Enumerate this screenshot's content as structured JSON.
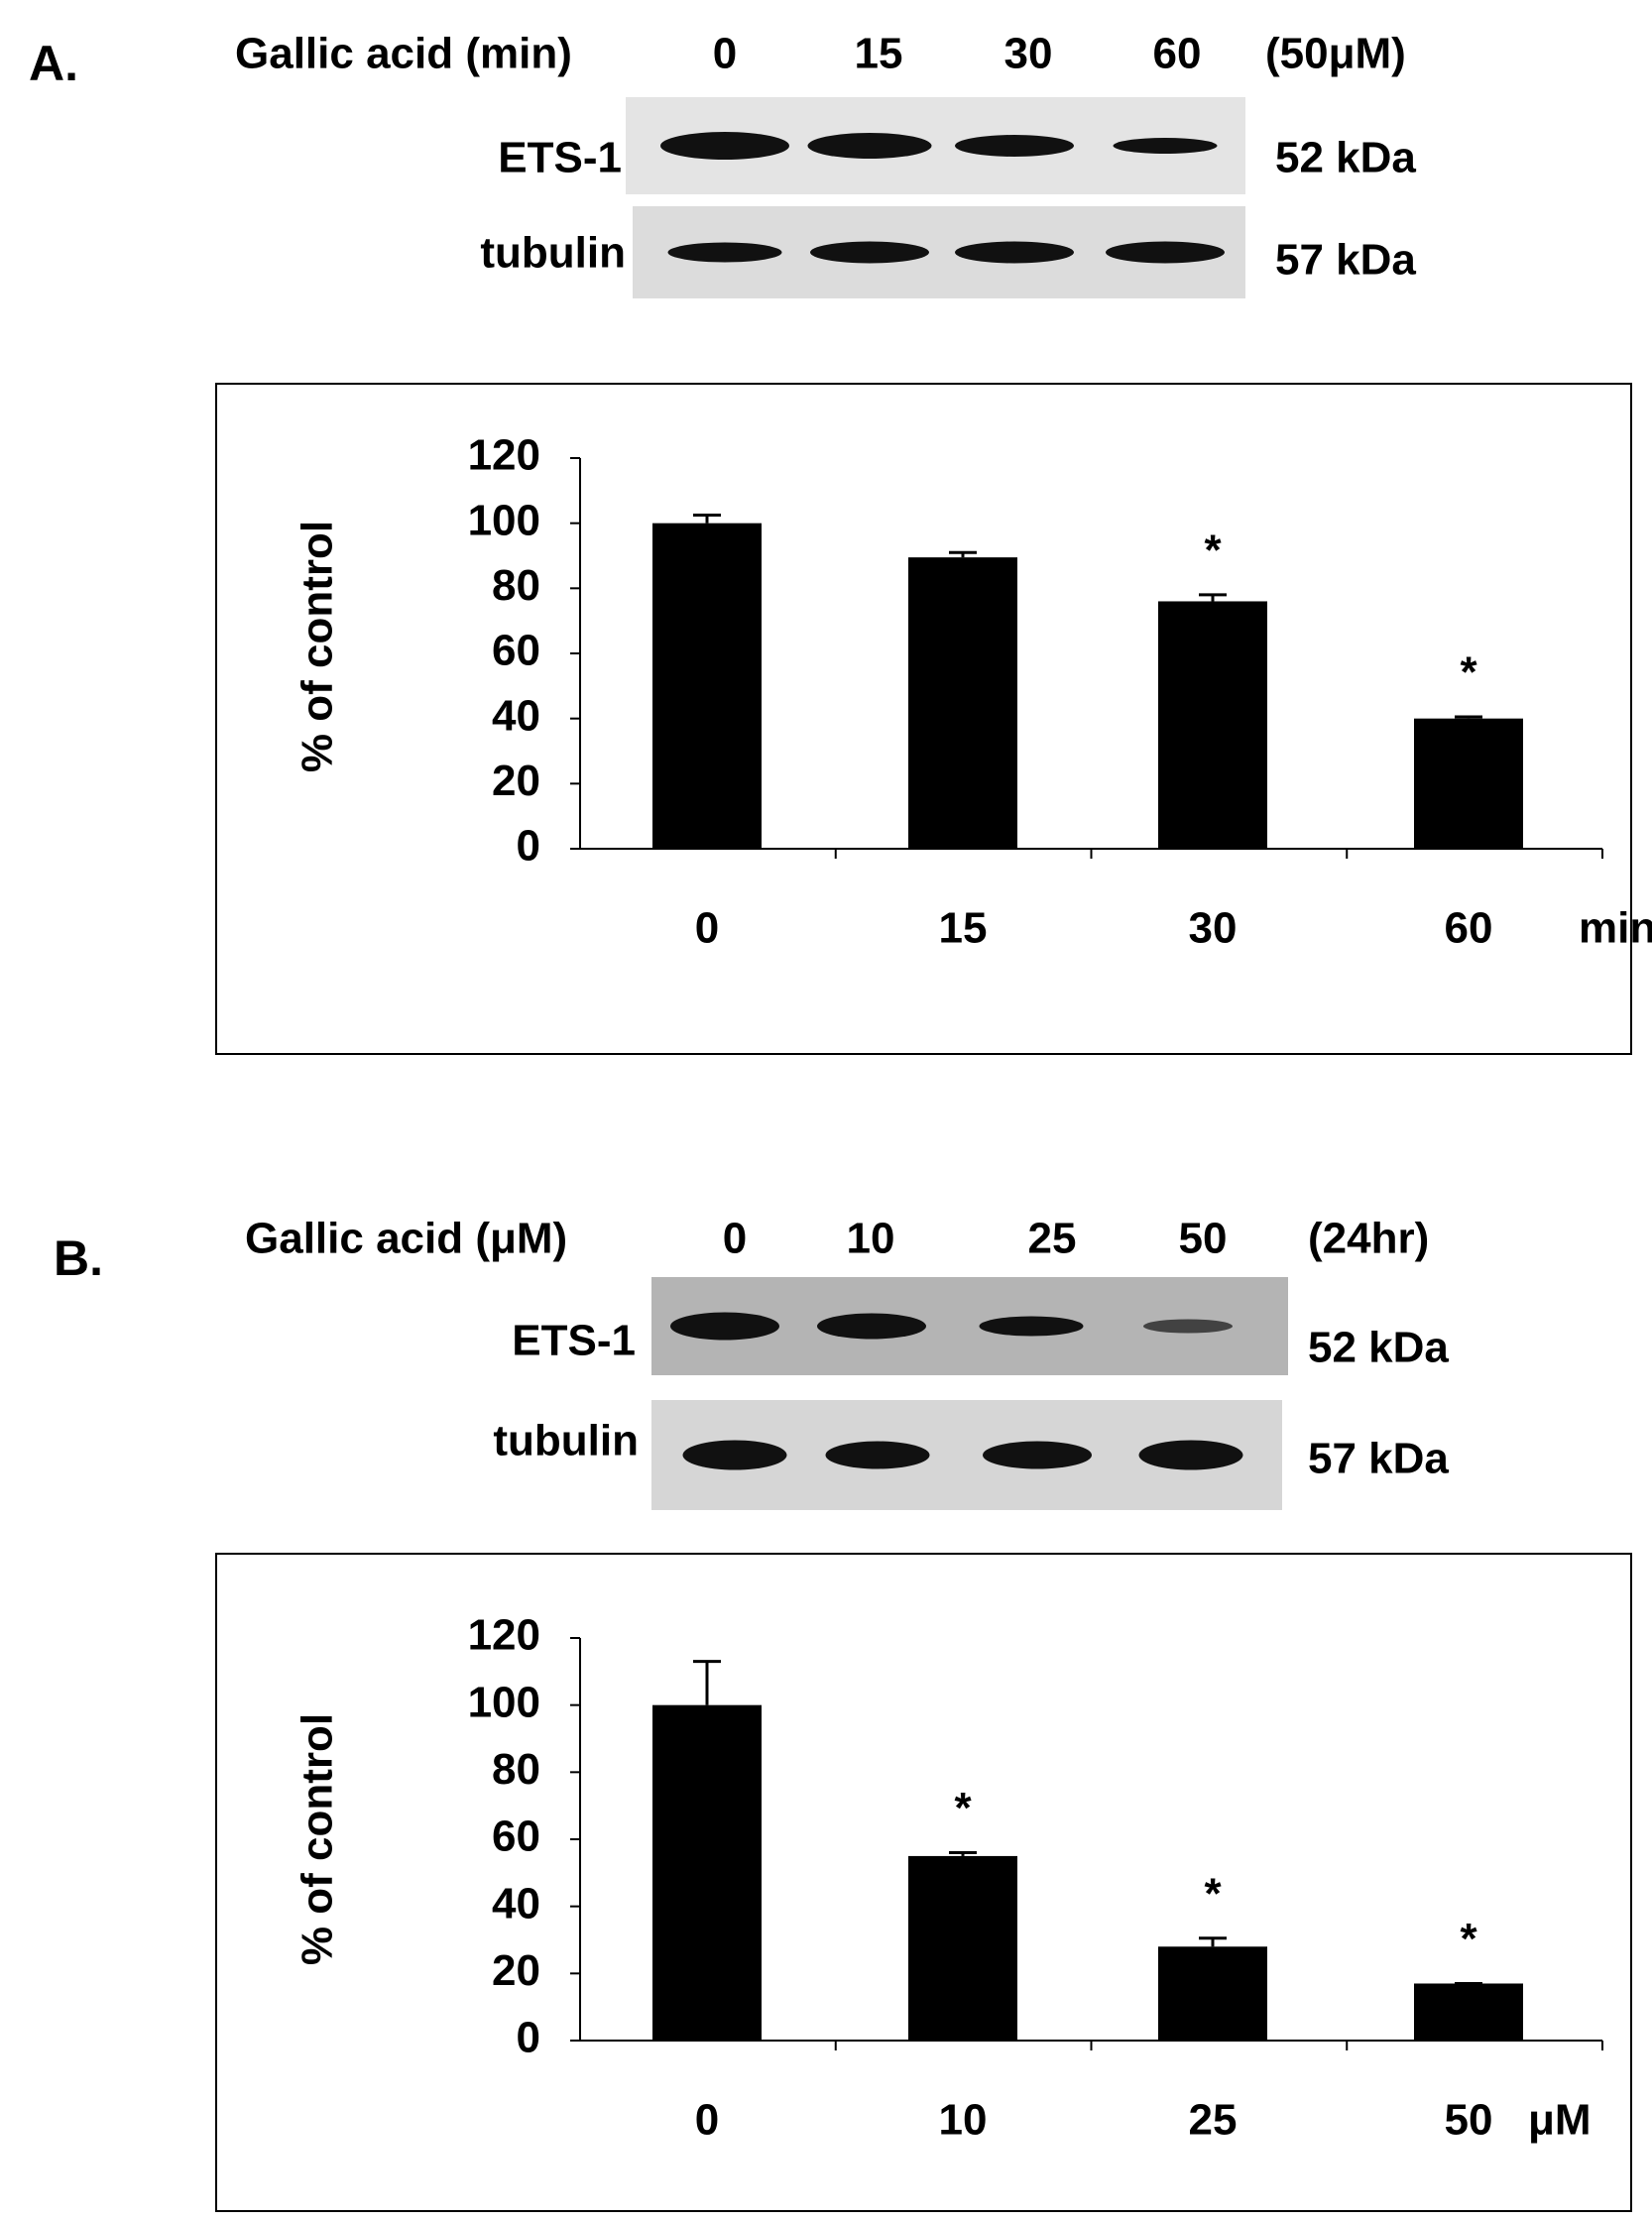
{
  "chart_data": [
    {
      "type": "bar",
      "panel_label": "A.",
      "blot": {
        "treatment_label": "Gallic acid (min)",
        "lanes": [
          "0",
          "15",
          "30",
          "60"
        ],
        "condition": "(50μM)",
        "rows": [
          {
            "protein": "ETS-1",
            "size": "52 kDa"
          },
          {
            "protein": "tubulin",
            "size": "57 kDa"
          }
        ]
      },
      "y_label": "% of control",
      "x_unit": "min",
      "categories": [
        "0",
        "15",
        "30",
        "60"
      ],
      "values": [
        100,
        89.5,
        76,
        40
      ],
      "errors": [
        2.5,
        1.5,
        2,
        0.5
      ],
      "significance": [
        null,
        null,
        "*",
        "*"
      ],
      "color": "#000000",
      "ylim": [
        0,
        120
      ],
      "yticks": [
        0,
        20,
        40,
        60,
        80,
        100,
        120
      ]
    },
    {
      "type": "bar",
      "panel_label": "B.",
      "blot": {
        "treatment_label": "Gallic acid (μM)",
        "lanes": [
          "0",
          "10",
          "25",
          "50"
        ],
        "condition": "(24hr)",
        "rows": [
          {
            "protein": "ETS-1",
            "size": "52 kDa"
          },
          {
            "protein": "tubulin",
            "size": "57 kDa"
          }
        ]
      },
      "y_label": "% of control",
      "x_unit": "μM",
      "categories": [
        "0",
        "10",
        "25",
        "50"
      ],
      "values": [
        100,
        55,
        28,
        17
      ],
      "errors": [
        13,
        1,
        2.5,
        0
      ],
      "significance": [
        null,
        "*",
        "*",
        "*"
      ],
      "color": "#000000",
      "ylim": [
        0,
        120
      ],
      "yticks": [
        0,
        20,
        40,
        60,
        80,
        100,
        120
      ]
    }
  ]
}
